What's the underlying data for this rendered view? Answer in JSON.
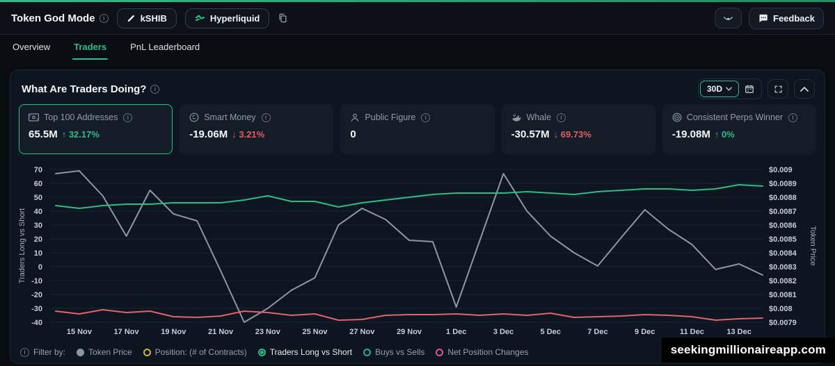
{
  "header": {
    "title": "Token God Mode",
    "token_badge": "kSHIB",
    "platform_badge": "Hyperliquid",
    "feedback_label": "Feedback"
  },
  "tabs": [
    {
      "label": "Overview",
      "active": false
    },
    {
      "label": "Traders",
      "active": true
    },
    {
      "label": "PnL Leaderboard",
      "active": false
    }
  ],
  "panel": {
    "title": "What Are Traders Doing?",
    "range_selector": "30D"
  },
  "cards": [
    {
      "icon": "banknote-icon",
      "label": "Top 100 Addresses",
      "value": "65.5M",
      "arrow": "↑",
      "change": "32.17%",
      "trend": "up",
      "selected": true
    },
    {
      "icon": "smart-money-icon",
      "label": "Smart Money",
      "value": "-19.06M",
      "arrow": "↓",
      "change": "3.21%",
      "trend": "down",
      "selected": false
    },
    {
      "icon": "public-figure-icon",
      "label": "Public Figure",
      "value": "0",
      "arrow": "",
      "change": "",
      "trend": "",
      "selected": false
    },
    {
      "icon": "whale-icon",
      "label": "Whale",
      "value": "-30.57M",
      "arrow": "↓",
      "change": "69.73%",
      "trend": "down",
      "selected": false
    },
    {
      "icon": "target-icon",
      "label": "Consistent Perps Winner",
      "value": "-19.08M",
      "arrow": "↑",
      "change": "0%",
      "trend": "up",
      "selected": false
    }
  ],
  "chart_data": {
    "type": "line",
    "x_labels": [
      "15 Nov",
      "17 Nov",
      "19 Nov",
      "21 Nov",
      "23 Nov",
      "25 Nov",
      "27 Nov",
      "29 Nov",
      "1 Dec",
      "3 Dec",
      "5 Dec",
      "7 Dec",
      "9 Dec",
      "11 Dec",
      "13 Dec"
    ],
    "left_axis": {
      "label": "Traders Long vs Short",
      "min": -40,
      "max": 70,
      "ticks": [
        70,
        60,
        50,
        40,
        30,
        20,
        10,
        0,
        -10,
        -20,
        -30,
        -40
      ]
    },
    "right_axis": {
      "label": "Token Price",
      "min": 0.0079,
      "max": 0.009,
      "ticks": [
        "$0.009",
        "$0.0089",
        "$0.0088",
        "$0.0087",
        "$0.0086",
        "$0.0085",
        "$0.0084",
        "$0.0083",
        "$0.0082",
        "$0.0081",
        "$0.008",
        "$0.0079"
      ]
    },
    "grid": true,
    "legend_position": "bottom",
    "series": [
      {
        "name": "Traders Long vs Short",
        "axis": "left",
        "color": "#8d97a5",
        "values": [
          67,
          69,
          51,
          22,
          55,
          38,
          33,
          -3,
          -40,
          -30,
          -17,
          -8,
          30,
          42,
          34,
          19,
          18,
          -29,
          19,
          67,
          40,
          22,
          10,
          0.5,
          21,
          41,
          27,
          16,
          -2,
          2,
          -6
        ]
      },
      {
        "name": "Net Position Changes",
        "axis": "left",
        "color": "#e2636c",
        "values": [
          -32,
          -34,
          -31,
          -33,
          -32,
          -36,
          -36.5,
          -35.5,
          -32,
          -33,
          -35,
          -34,
          -38.5,
          -38,
          -35,
          -34.5,
          -34.5,
          -34,
          -35,
          -34,
          -35,
          -33.5,
          -36.5,
          -36,
          -35.5,
          -34.5,
          -35,
          -36,
          -38.5,
          -37.5,
          -37
        ]
      },
      {
        "name": "Token Price",
        "axis": "right",
        "color": "#2ebd85",
        "values": [
          0.00874,
          0.00872,
          0.00874,
          0.00875,
          0.00875,
          0.00876,
          0.00876,
          0.00876,
          0.00878,
          0.00881,
          0.00877,
          0.00877,
          0.00873,
          0.00876,
          0.00878,
          0.0088,
          0.00882,
          0.00883,
          0.00883,
          0.00883,
          0.00884,
          0.00883,
          0.00882,
          0.00884,
          0.00885,
          0.00886,
          0.00886,
          0.00885,
          0.00886,
          0.00889,
          0.00888
        ]
      }
    ]
  },
  "legend": {
    "prefix": "Filter by:",
    "items": [
      {
        "label": "Token Price",
        "color": "#8b95a3",
        "style": "filled",
        "selected": false
      },
      {
        "label": "Position: (# of Contracts)",
        "color": "#d4b43a",
        "style": "ring",
        "selected": false
      },
      {
        "label": "Traders Long vs Short",
        "color": "#2ebd85",
        "style": "ring-dot",
        "selected": true
      },
      {
        "label": "Buys vs Sells",
        "color": "#2ea98d",
        "style": "ring",
        "selected": false
      },
      {
        "label": "Net Position Changes",
        "color": "#dd5a92",
        "style": "ring",
        "selected": false
      }
    ]
  },
  "watermark": "seekingmillionaireapp.com",
  "colors": {
    "accent": "#2ebd85",
    "down": "#e25c66",
    "grid": "#1c2531"
  }
}
